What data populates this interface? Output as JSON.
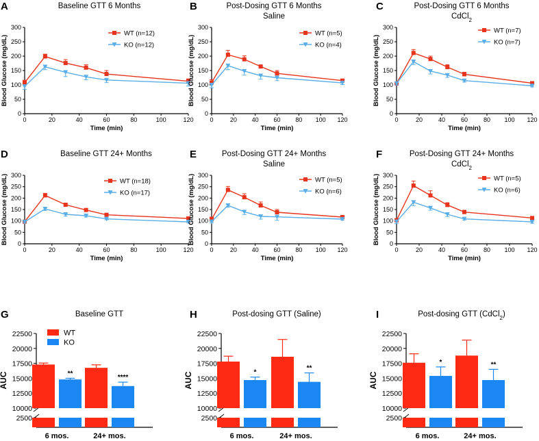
{
  "colors": {
    "wt": "#e8341c",
    "ko": "#5aaee8",
    "wt_bar": "#ff2a14",
    "ko_bar": "#1a87f2"
  },
  "chart_data": [
    {
      "id": "A",
      "panel_label": "A",
      "type": "line",
      "title": [
        "Baseline GTT 6 Months"
      ],
      "xlabel": "Time (min)",
      "ylabel": "Blood Glucose (mg/dL)",
      "xlim": [
        0,
        120
      ],
      "ylim": [
        0,
        300
      ],
      "xticks": [
        "0",
        "20",
        "40",
        "60",
        "80",
        "100",
        "120"
      ],
      "yticks": [
        "0",
        "50",
        "100",
        "150",
        "200",
        "250",
        "300"
      ],
      "series": [
        {
          "name": "WT (n=12)",
          "color": "#e8341c",
          "x": [
            0,
            15,
            30,
            45,
            60,
            120
          ],
          "y": [
            108,
            199,
            176,
            160,
            138,
            113
          ],
          "err": [
            8,
            8,
            12,
            10,
            12,
            8
          ]
        },
        {
          "name": "KO (n=12)",
          "color": "#5aaee8",
          "x": [
            0,
            15,
            30,
            45,
            60,
            120
          ],
          "y": [
            95,
            163,
            144,
            128,
            117,
            106
          ],
          "err": [
            10,
            10,
            15,
            10,
            9,
            10
          ]
        }
      ]
    },
    {
      "id": "B",
      "panel_label": "B",
      "type": "line",
      "title": [
        "Post-Dosing GTT 6 Months",
        "Saline"
      ],
      "xlabel": "Time (min)",
      "ylabel": "Blood Glucose (mg/dL)",
      "xlim": [
        0,
        120
      ],
      "ylim": [
        0,
        300
      ],
      "xticks": [
        "0",
        "20",
        "40",
        "60",
        "80",
        "100",
        "120"
      ],
      "yticks": [
        "0",
        "50",
        "100",
        "150",
        "200",
        "250",
        "300"
      ],
      "series": [
        {
          "name": "WT (n=5)",
          "color": "#e8341c",
          "x": [
            0,
            15,
            30,
            45,
            60,
            120
          ],
          "y": [
            108,
            205,
            189,
            164,
            140,
            115
          ],
          "err": [
            10,
            15,
            12,
            5,
            10,
            5
          ]
        },
        {
          "name": "KO (n=4)",
          "color": "#5aaee8",
          "x": [
            0,
            15,
            30,
            45,
            60,
            120
          ],
          "y": [
            100,
            167,
            148,
            132,
            125,
            107
          ],
          "err": [
            10,
            14,
            14,
            12,
            10,
            6
          ]
        }
      ]
    },
    {
      "id": "C",
      "panel_label": "C",
      "type": "line",
      "title": [
        "Post-Dosing GTT 6 Months",
        "CdCl₂"
      ],
      "xlabel": "Time (min)",
      "ylabel": "Blood Glucose (mg/dL)",
      "xlim": [
        0,
        120
      ],
      "ylim": [
        0,
        300
      ],
      "xticks": [
        "0",
        "20",
        "40",
        "60",
        "80",
        "100",
        "120"
      ],
      "yticks": [
        "0",
        "50",
        "100",
        "150",
        "200",
        "250",
        "300"
      ],
      "series": [
        {
          "name": "WT (n=7)",
          "color": "#e8341c",
          "x": [
            0,
            15,
            30,
            45,
            60,
            120
          ],
          "y": [
            105,
            211,
            190,
            162,
            137,
            106
          ],
          "err": [
            5,
            12,
            10,
            8,
            7,
            3
          ]
        },
        {
          "name": "KO (n=7)",
          "color": "#5aaee8",
          "x": [
            0,
            15,
            30,
            45,
            60,
            120
          ],
          "y": [
            105,
            181,
            148,
            134,
            115,
            97
          ],
          "err": [
            5,
            10,
            10,
            8,
            5,
            4
          ]
        }
      ]
    },
    {
      "id": "D",
      "panel_label": "D",
      "type": "line",
      "title": [
        "Baseline GTT 24+ Months"
      ],
      "xlabel": "Time (min)",
      "ylabel": "Blood Glucose (mg/dL)",
      "xlim": [
        0,
        120
      ],
      "ylim": [
        0,
        300
      ],
      "xticks": [
        "0",
        "20",
        "40",
        "60",
        "80",
        "100",
        "120"
      ],
      "yticks": [
        "0",
        "50",
        "100",
        "150",
        "200",
        "250",
        "300"
      ],
      "series": [
        {
          "name": "WT (n=18)",
          "color": "#e8341c",
          "x": [
            0,
            15,
            30,
            45,
            60,
            120
          ],
          "y": [
            97,
            212,
            171,
            148,
            127,
            111
          ],
          "err": [
            4,
            9,
            7,
            6,
            4,
            3
          ]
        },
        {
          "name": "KO (n=17)",
          "color": "#5aaee8",
          "x": [
            0,
            15,
            30,
            45,
            60,
            120
          ],
          "y": [
            96,
            153,
            129,
            123,
            109,
            96
          ],
          "err": [
            4,
            7,
            8,
            6,
            4,
            3
          ]
        }
      ]
    },
    {
      "id": "E",
      "panel_label": "E",
      "type": "line",
      "title": [
        "Post-Dosing GTT 24+ Months",
        "Saline"
      ],
      "xlabel": "Time (min)",
      "ylabel": "Blood Glucose (mg/dL)",
      "xlim": [
        0,
        120
      ],
      "ylim": [
        0,
        300
      ],
      "xticks": [
        "0",
        "20",
        "40",
        "60",
        "80",
        "100",
        "120"
      ],
      "yticks": [
        "0",
        "50",
        "100",
        "150",
        "200",
        "250",
        "300"
      ],
      "series": [
        {
          "name": "WT (n=5)",
          "color": "#e8341c",
          "x": [
            0,
            15,
            30,
            45,
            60,
            120
          ],
          "y": [
            107,
            236,
            204,
            168,
            138,
            117
          ],
          "err": [
            10,
            15,
            15,
            15,
            12,
            4
          ]
        },
        {
          "name": "KO (n=6)",
          "color": "#5aaee8",
          "x": [
            0,
            15,
            30,
            45,
            60,
            120
          ],
          "y": [
            97,
            168,
            140,
            120,
            118,
            108
          ],
          "err": [
            5,
            8,
            12,
            12,
            15,
            4
          ]
        }
      ]
    },
    {
      "id": "F",
      "panel_label": "F",
      "type": "line",
      "title": [
        "Post-Dosing GTT 24+ Months",
        "CdCl₂"
      ],
      "xlabel": "Time (min)",
      "ylabel": "Blood Glucose (mg/dL)",
      "xlim": [
        0,
        120
      ],
      "ylim": [
        0,
        300
      ],
      "xticks": [
        "0",
        "20",
        "40",
        "60",
        "80",
        "100",
        "120"
      ],
      "yticks": [
        "0",
        "50",
        "100",
        "150",
        "200",
        "250",
        "300"
      ],
      "series": [
        {
          "name": "WT (n=5)",
          "color": "#e8341c",
          "x": [
            0,
            15,
            30,
            45,
            60,
            120
          ],
          "y": [
            103,
            255,
            212,
            170,
            139,
            113
          ],
          "err": [
            8,
            20,
            20,
            10,
            8,
            5
          ]
        },
        {
          "name": "KO (n=6)",
          "color": "#5aaee8",
          "x": [
            0,
            15,
            30,
            45,
            60,
            120
          ],
          "y": [
            97,
            182,
            157,
            129,
            109,
            96
          ],
          "err": [
            8,
            15,
            10,
            10,
            5,
            6
          ]
        }
      ]
    },
    {
      "id": "G",
      "panel_label": "G",
      "type": "bar",
      "title": [
        "Baseline GTT"
      ],
      "ylabel": "AUC",
      "categories": [
        "6 mos.",
        "24+ mos."
      ],
      "ylim": [
        10000,
        22500
      ],
      "yticks": [
        "10000",
        "12500",
        "15000",
        "17500",
        "20000",
        "22500"
      ],
      "lower_tick": "2500",
      "legend": [
        "WT",
        "KO"
      ],
      "series": [
        {
          "name": "WT",
          "color": "#ff2a14",
          "values": [
            17300,
            16750
          ],
          "err": [
            250,
            500
          ]
        },
        {
          "name": "KO",
          "color": "#1a87f2",
          "values": [
            14800,
            13700
          ],
          "err": [
            200,
            650
          ]
        }
      ],
      "significance": [
        "**",
        "****"
      ]
    },
    {
      "id": "H",
      "panel_label": "H",
      "type": "bar",
      "title": [
        "Post-dosing GTT (Saline)"
      ],
      "ylabel": "AUC",
      "categories": [
        "6 mos.",
        "24+ mos."
      ],
      "ylim": [
        10000,
        22500
      ],
      "yticks": [
        "10000",
        "12500",
        "15000",
        "17500",
        "20000",
        "22500"
      ],
      "lower_tick": "2500",
      "series": [
        {
          "name": "WT",
          "color": "#ff2a14",
          "values": [
            17800,
            18600
          ],
          "err": [
            900,
            2900
          ]
        },
        {
          "name": "KO",
          "color": "#1a87f2",
          "values": [
            14700,
            14400
          ],
          "err": [
            500,
            1500
          ]
        }
      ],
      "significance": [
        "*",
        "**"
      ]
    },
    {
      "id": "I",
      "panel_label": "I",
      "type": "bar",
      "title": [
        "Post-dosing GTT (CdCl₂)"
      ],
      "ylabel": "AUC",
      "categories": [
        "6 mos.",
        "24+ mos."
      ],
      "ylim": [
        10000,
        22500
      ],
      "yticks": [
        "10000",
        "12500",
        "15000",
        "17500",
        "20000",
        "22500"
      ],
      "lower_tick": "2500",
      "series": [
        {
          "name": "WT",
          "color": "#ff2a14",
          "values": [
            17600,
            18800
          ],
          "err": [
            1500,
            2600
          ]
        },
        {
          "name": "KO",
          "color": "#1a87f2",
          "values": [
            15400,
            14700
          ],
          "err": [
            1500,
            1800
          ]
        }
      ],
      "significance": [
        "*",
        "**"
      ]
    }
  ]
}
